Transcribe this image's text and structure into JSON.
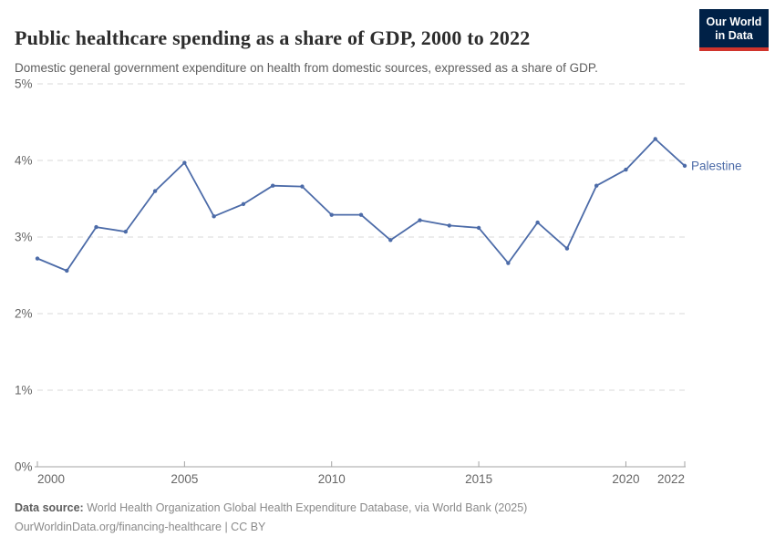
{
  "header": {
    "title": "Public healthcare spending as a share of GDP, 2000 to 2022",
    "subtitle": "Domestic general government expenditure on health from domestic sources, expressed as a share of GDP.",
    "logo": {
      "line1": "Our World",
      "line2": "in Data",
      "bg_color": "#002147",
      "bar_color": "#D0342C"
    }
  },
  "chart_data": {
    "type": "line",
    "title": "Public healthcare spending as a share of GDP, 2000 to 2022",
    "xlabel": "",
    "ylabel": "",
    "x": [
      2000,
      2001,
      2002,
      2003,
      2004,
      2005,
      2006,
      2007,
      2008,
      2009,
      2010,
      2011,
      2012,
      2013,
      2014,
      2015,
      2016,
      2017,
      2018,
      2019,
      2020,
      2021,
      2022
    ],
    "series": [
      {
        "name": "Palestine",
        "color": "#4C6BA8",
        "values": [
          2.72,
          2.56,
          3.13,
          3.07,
          3.6,
          3.97,
          3.27,
          3.43,
          3.67,
          3.66,
          3.29,
          3.29,
          2.96,
          3.22,
          3.15,
          3.12,
          2.66,
          3.19,
          2.85,
          3.67,
          3.88,
          4.28,
          3.93
        ]
      }
    ],
    "xlim": [
      2000,
      2022
    ],
    "ylim": [
      0,
      5
    ],
    "yticks": [
      0,
      1,
      2,
      3,
      4,
      5
    ],
    "ytick_suffix": "%",
    "xticks": [
      2000,
      2005,
      2010,
      2015,
      2020,
      2022
    ],
    "grid": "horizontal-dashed",
    "legend_position": "end-of-line-label",
    "colors": {
      "gridline": "#d9d9d9",
      "axis_line": "#a3a3a3",
      "tick_label": "#666666"
    }
  },
  "footer": {
    "source_label": "Data source:",
    "source_text": " World Health Organization Global Health Expenditure Database, via World Bank (2025)",
    "license_line": "OurWorldinData.org/financing-healthcare | CC BY"
  }
}
